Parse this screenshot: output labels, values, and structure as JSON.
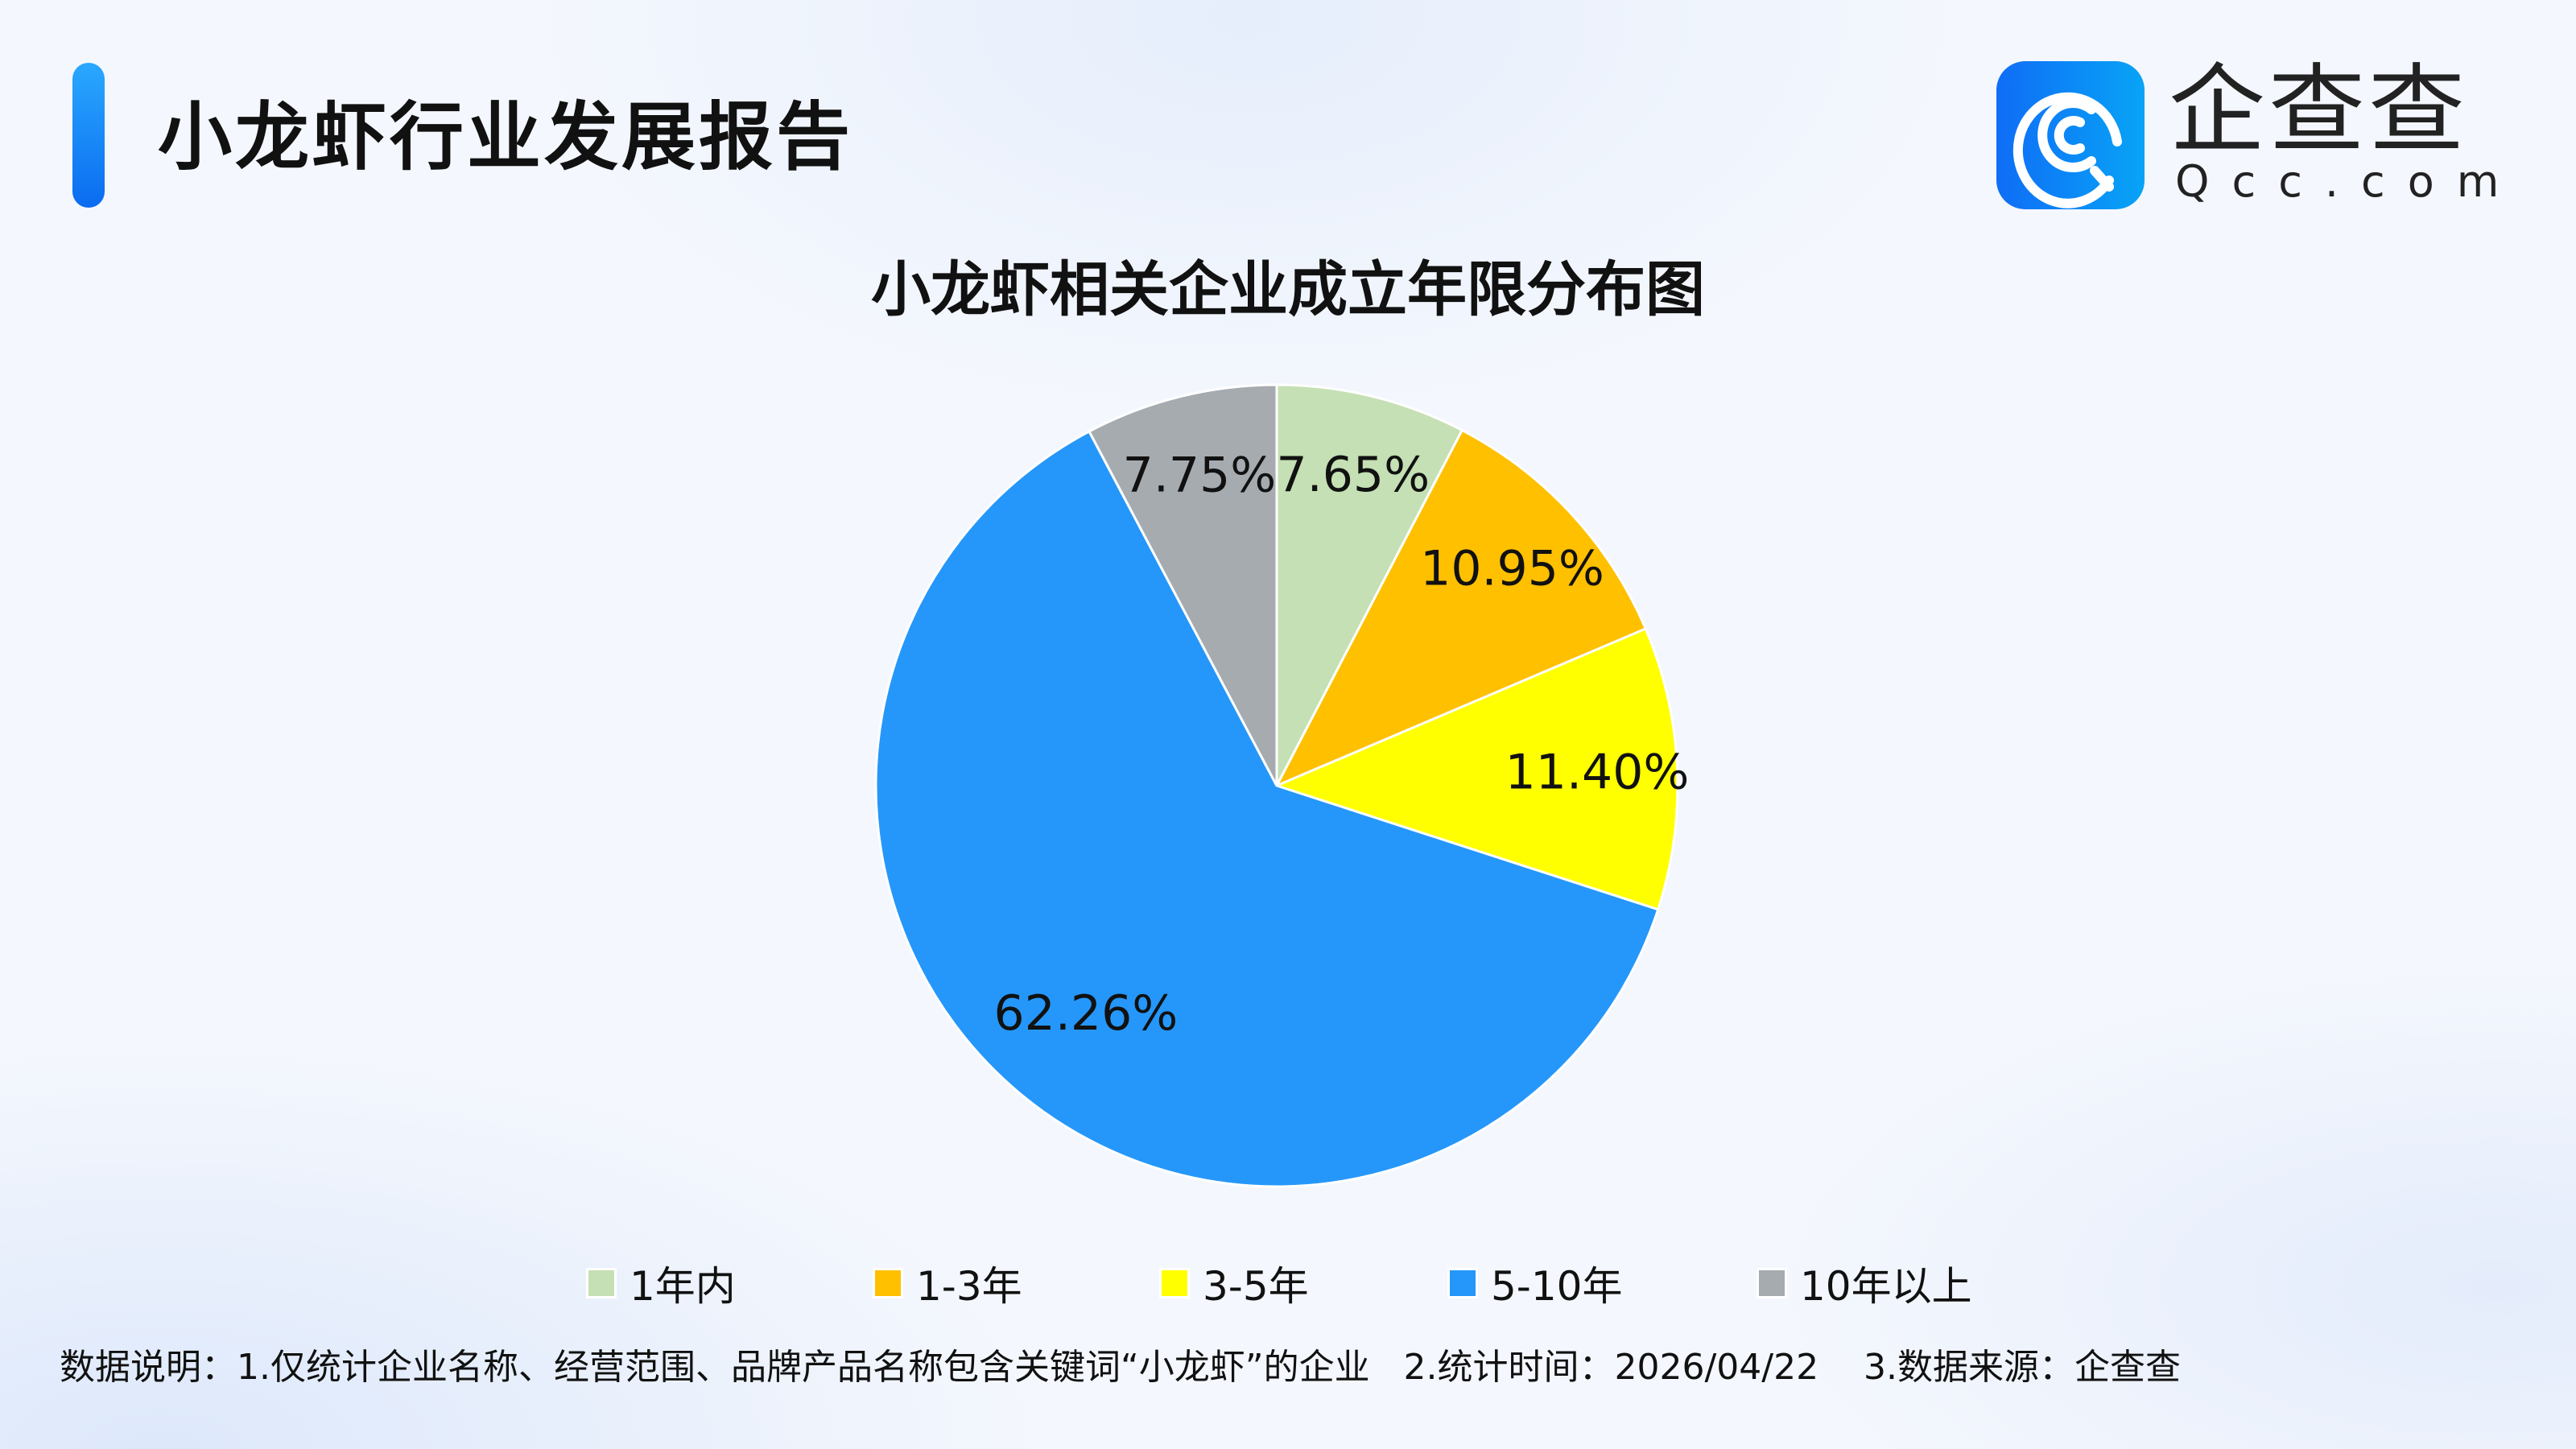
{
  "header": {
    "title": "小龙虾行业发展报告"
  },
  "logo": {
    "name_cn": "企查查",
    "name_en": "Qcc.com"
  },
  "chart_data": {
    "type": "pie",
    "title": "小龙虾相关企业成立年限分布图",
    "categories": [
      "1年内",
      "1-3年",
      "3-5年",
      "5-10年",
      "10年以上"
    ],
    "values": [
      7.65,
      10.95,
      11.4,
      62.26,
      7.75
    ],
    "labels": [
      "7.65%",
      "10.95%",
      "11.40%",
      "62.26%",
      "7.75%"
    ],
    "colors": [
      "#c5e0b4",
      "#ffc000",
      "#ffff00",
      "#2597fa",
      "#a6abb0"
    ],
    "start": "top",
    "direction": "clockwise",
    "legend": "bottom"
  },
  "footer": {
    "note": "数据说明：1.仅统计企业名称、经营范围、品牌产品名称包含关键词“小龙虾”的企业   2.统计时间：2026/04/22    3.数据来源：企查查"
  }
}
